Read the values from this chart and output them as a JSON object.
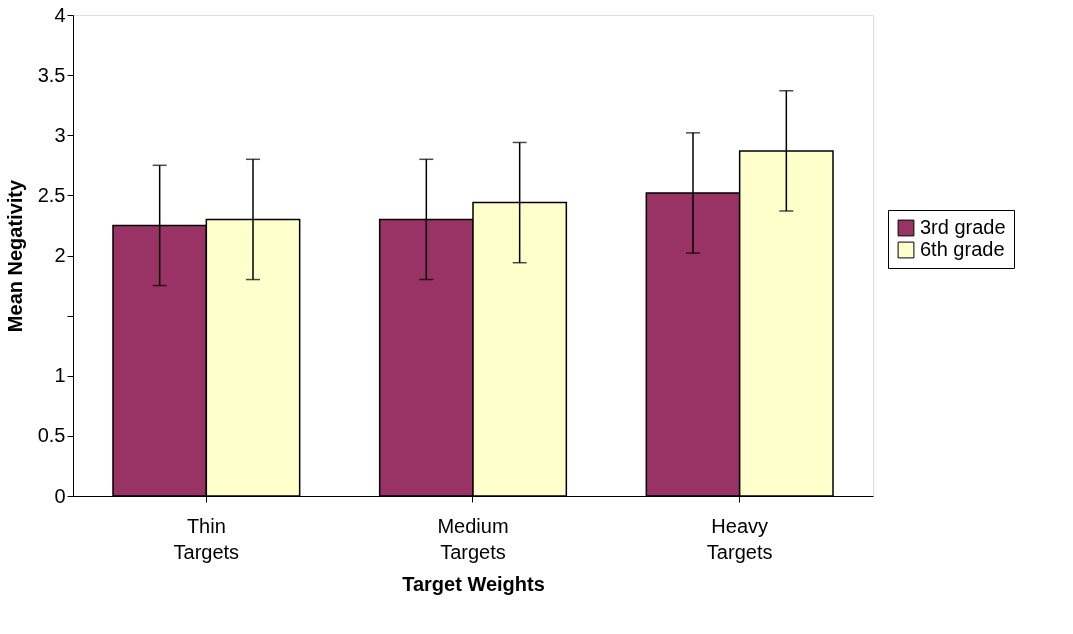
{
  "chart_data": {
    "type": "bar",
    "xlabel": "Target Weights",
    "ylabel": "Mean Negativity",
    "categories": [
      "Thin Targets",
      "Medium Targets",
      "Heavy Targets"
    ],
    "series": [
      {
        "name": "3rd grade",
        "color": "#993366",
        "values": [
          2.25,
          2.3,
          2.52
        ],
        "errors": [
          0.5,
          0.5,
          0.5
        ]
      },
      {
        "name": "6th grade",
        "color": "#ffffcc",
        "values": [
          2.3,
          2.44,
          2.87
        ],
        "errors": [
          0.5,
          0.5,
          0.5
        ]
      }
    ],
    "ylim": [
      0,
      4
    ],
    "yticks": [
      0,
      0.5,
      1,
      {
        "value": 1.5,
        "label": null
      },
      2,
      2.5,
      3,
      3.5,
      4
    ],
    "grid": false,
    "legend": "right"
  }
}
